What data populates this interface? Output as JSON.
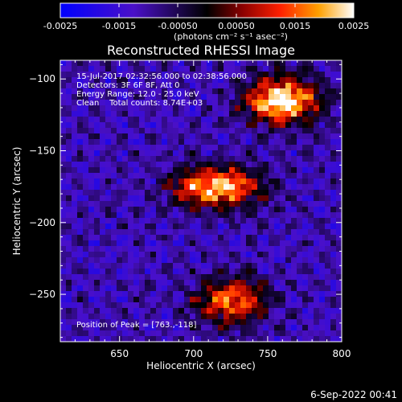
{
  "colorbar": {
    "tick_labels": [
      "-0.0025",
      "-0.0015",
      "-0.00050",
      "0.00050",
      "0.0015",
      "0.0025"
    ],
    "unit_label": "(photons cm⁻² s⁻¹ asec⁻²)",
    "range": [
      -0.0025,
      0.0025
    ]
  },
  "footer": {
    "date": "6-Sep-2022 00:41"
  },
  "chart_data": {
    "type": "heatmap",
    "title": "Reconstructed RHESSI Image",
    "xlabel": "Heliocentric X (arcsec)",
    "ylabel": "Heliocentric Y (arcsec)",
    "xlim": [
      610,
      800
    ],
    "ylim": [
      -283,
      -87
    ],
    "x_ticks": [
      650,
      700,
      750,
      800
    ],
    "y_ticks": [
      -100,
      -150,
      -200,
      -250
    ],
    "annotations": [
      "15-Jul-2017 02:32:56.000 to 02:38:56.000",
      "Detectors: 3F 6F 8F, Att 0",
      "Energy Range: 12.0 - 25.0 keV",
      "Clean    Total counts: 8.74E+03",
      "Position of Peak = [763.,-118]"
    ],
    "peak": [
      763,
      -118
    ],
    "sources": [
      {
        "x": 760,
        "y": -115,
        "peak": 0.0026
      },
      {
        "x": 715,
        "y": -175,
        "peak": 0.0024
      },
      {
        "x": 725,
        "y": -255,
        "peak": 0.0015
      }
    ]
  }
}
